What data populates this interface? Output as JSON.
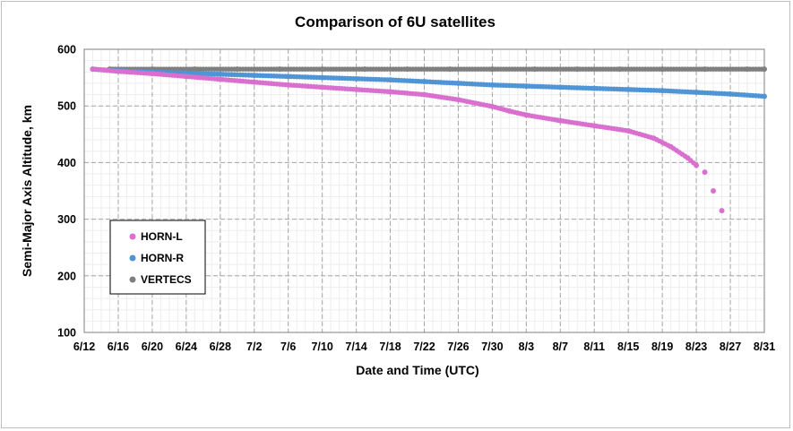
{
  "chart_data": {
    "type": "scatter",
    "title": "Comparison of 6U satellites",
    "xlabel": "Date and Time (UTC)",
    "ylabel": "Semi-Major Axis Altitude, km",
    "xlim": [
      "6/12",
      "8/31"
    ],
    "ylim": [
      100,
      600
    ],
    "x_ticks": [
      "6/12",
      "6/16",
      "6/20",
      "6/24",
      "6/28",
      "7/2",
      "7/6",
      "7/10",
      "7/14",
      "7/18",
      "7/22",
      "7/26",
      "7/30",
      "8/3",
      "8/7",
      "8/11",
      "8/15",
      "8/19",
      "8/23",
      "8/27",
      "8/31"
    ],
    "y_ticks": [
      100,
      200,
      300,
      400,
      500,
      600
    ],
    "grid": true,
    "minor_grid": true,
    "legend_position": "bottom-left",
    "series": [
      {
        "name": "HORN-L",
        "color": "#d96fcf",
        "x": [
          "6/13",
          "6/16",
          "6/20",
          "6/24",
          "6/28",
          "7/2",
          "7/6",
          "7/10",
          "7/14",
          "7/18",
          "7/22",
          "7/26",
          "7/30",
          "8/1",
          "8/3",
          "8/7",
          "8/11",
          "8/15",
          "8/18",
          "8/20",
          "8/22",
          "8/23",
          "8/24",
          "8/25",
          "8/26"
        ],
        "y": [
          565,
          561,
          557,
          552,
          547,
          542,
          537,
          533,
          529,
          525,
          520,
          511,
          499,
          491,
          484,
          474,
          465,
          456,
          443,
          428,
          408,
          395,
          383,
          350,
          315
        ]
      },
      {
        "name": "HORN-R",
        "color": "#4f95d6",
        "x": [
          "6/13",
          "6/16",
          "6/20",
          "6/24",
          "6/28",
          "7/2",
          "7/6",
          "7/10",
          "7/14",
          "7/18",
          "7/22",
          "7/26",
          "7/30",
          "8/3",
          "8/7",
          "8/11",
          "8/15",
          "8/19",
          "8/23",
          "8/27",
          "8/31"
        ],
        "y": [
          565,
          562,
          560,
          558,
          556,
          554,
          552,
          550,
          548,
          546,
          543,
          540,
          537,
          535,
          533,
          531,
          529,
          527,
          524,
          521,
          517
        ]
      },
      {
        "name": "VERTECS",
        "color": "#7f7f7f",
        "x": [
          "6/15",
          "6/20",
          "6/25",
          "6/30",
          "7/5",
          "7/10",
          "7/15",
          "7/20",
          "7/25",
          "7/30",
          "8/4",
          "8/9",
          "8/14",
          "8/19",
          "8/24",
          "8/29",
          "8/31"
        ],
        "y": [
          565,
          565,
          565,
          565,
          565,
          565,
          565,
          565,
          565,
          565,
          565,
          565,
          565,
          565,
          565,
          565,
          565
        ]
      }
    ]
  }
}
